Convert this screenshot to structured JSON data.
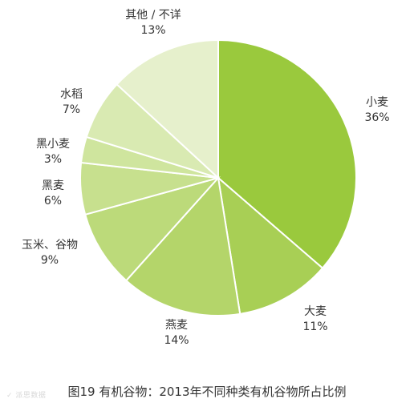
{
  "chart_data": {
    "type": "pie",
    "categories": [
      "小麦",
      "大麦",
      "燕麦",
      "玉米、谷物",
      "黑麦",
      "黑小麦",
      "水稻",
      "其他 / 不详"
    ],
    "values": [
      36,
      11,
      14,
      9,
      6,
      3,
      7,
      13
    ],
    "value_labels": [
      "36%",
      "11%",
      "14%",
      "9%",
      "6%",
      "3%",
      "7%",
      "13%"
    ],
    "colors": [
      "#9ac93d",
      "#a8cf55",
      "#b4d56a",
      "#bcda7a",
      "#c7e08e",
      "#cfe59e",
      "#d9eab2",
      "#e6f0cc"
    ],
    "start_angle_deg": 0,
    "direction": "clockwise",
    "title": "",
    "caption": "图19 有机谷物：2013年不同种类有机谷物所占比例"
  },
  "watermark": "✓ 派思数据"
}
